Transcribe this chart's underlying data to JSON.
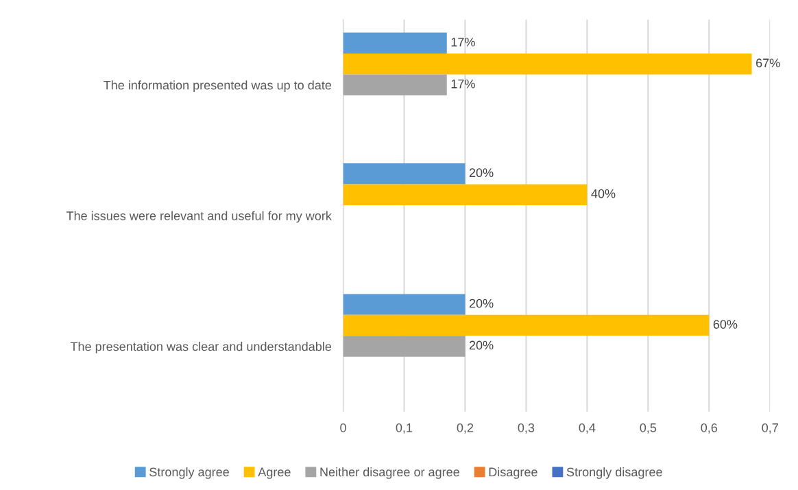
{
  "chart_data": {
    "type": "bar",
    "orientation": "horizontal",
    "categories": [
      "The information presented was up to date",
      "The issues were relevant and useful for my work",
      "The presentation was clear and understandable"
    ],
    "series": [
      {
        "name": "Strongly agree",
        "color": "#5b9bd5",
        "values": [
          0.17,
          0.2,
          0.2
        ],
        "value_labels": [
          "17%",
          "20%",
          "20%"
        ]
      },
      {
        "name": "Agree",
        "color": "#ffc000",
        "values": [
          0.67,
          0.4,
          0.6
        ],
        "value_labels": [
          "67%",
          "40%",
          "60%"
        ]
      },
      {
        "name": "Neither disagree or agree",
        "color": "#a5a5a5",
        "values": [
          0.17,
          null,
          0.2
        ],
        "value_labels": [
          "17%",
          null,
          "20%"
        ]
      },
      {
        "name": "Disagree",
        "color": "#ed7d31",
        "values": [
          null,
          null,
          null
        ]
      },
      {
        "name": "Strongly disagree",
        "color": "#4472c4",
        "values": [
          null,
          null,
          null
        ]
      }
    ],
    "xlim": [
      0,
      0.7
    ],
    "xticks": [
      0,
      {
        "value": 0.1,
        "label": "0,1"
      },
      {
        "value": 0.2,
        "label": "0,2"
      },
      {
        "value": 0.3,
        "label": "0,3"
      },
      {
        "value": 0.4,
        "label": "0,4"
      },
      {
        "value": 0.5,
        "label": "0,5"
      },
      {
        "value": 0.6,
        "label": "0,6"
      },
      {
        "value": 0.7,
        "label": "0,7"
      }
    ],
    "grid": "x",
    "legend": "bottom"
  }
}
